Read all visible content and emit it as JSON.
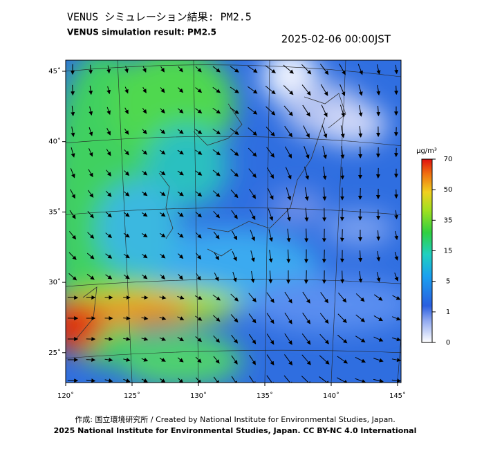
{
  "title": "VENUS シミュレーション結果: PM2.5",
  "subtitle": "VENUS simulation result: PM2.5",
  "datetime": "2025-02-06 00:00JST",
  "map": {
    "lat_labels": [
      "45˚",
      "40˚",
      "35˚",
      "30˚",
      "25˚"
    ],
    "lon_labels": [
      "120˚",
      "125˚",
      "130˚",
      "135˚",
      "140˚",
      "145˚"
    ]
  },
  "colorbar": {
    "unit": "μg/m³",
    "ticks": [
      70,
      50,
      35,
      15,
      5,
      1,
      0
    ]
  },
  "footer": [
    "作成: 国立環境研究所 / Created by National Institute for Environmental Studies, Japan.",
    "2025 National Institute for Environmental Studies, Japan. CC BY-NC 4.0 International"
  ]
}
